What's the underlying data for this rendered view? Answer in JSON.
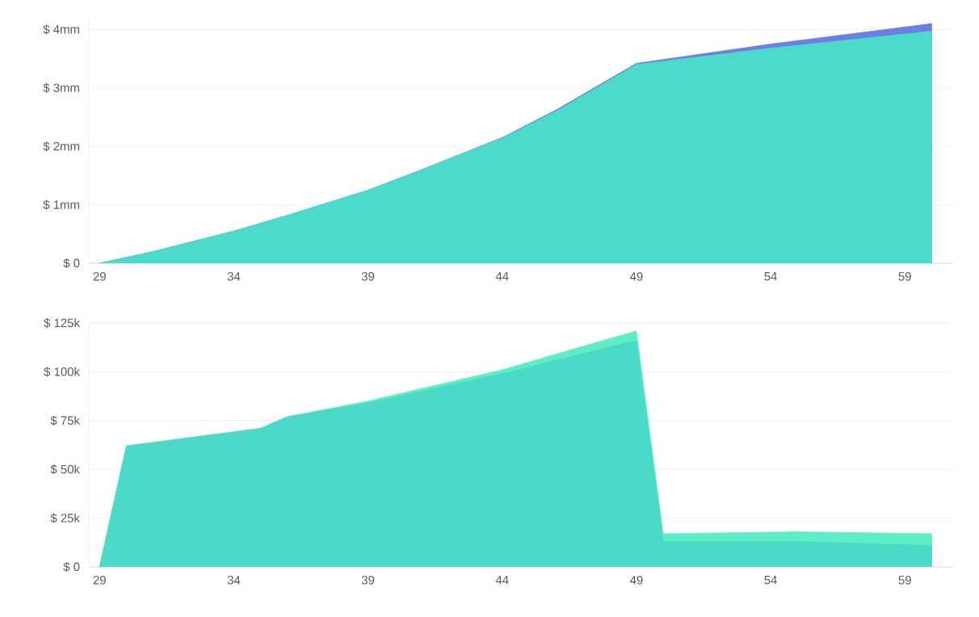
{
  "chart_data": [
    {
      "type": "area",
      "xlim": [
        28.6,
        60.8
      ],
      "ylim": [
        0,
        4.2
      ],
      "xticks": [
        29,
        34,
        39,
        44,
        49,
        54,
        59
      ],
      "yticks": [
        {
          "value": 0,
          "label": "$ 0"
        },
        {
          "value": 1,
          "label": "$ 1mm"
        },
        {
          "value": 2,
          "label": "$ 2mm"
        },
        {
          "value": 3,
          "label": "$ 3mm"
        },
        {
          "value": 4,
          "label": "$ 4mm"
        }
      ],
      "grid": "y",
      "x": [
        29,
        31,
        34,
        36,
        39,
        41,
        44,
        46,
        49,
        54,
        60
      ],
      "series": [
        {
          "color": "#6b7fe6",
          "values": [
            0,
            0.2,
            0.55,
            0.82,
            1.25,
            1.6,
            2.15,
            2.62,
            3.42,
            3.75,
            4.1
          ]
        },
        {
          "color": "#4ddbc9",
          "values": [
            0,
            0.2,
            0.55,
            0.82,
            1.25,
            1.6,
            2.14,
            2.6,
            3.4,
            3.68,
            3.97
          ]
        }
      ]
    },
    {
      "type": "area",
      "xlim": [
        28.6,
        60.8
      ],
      "ylim": [
        0,
        125
      ],
      "xticks": [
        29,
        34,
        39,
        44,
        49,
        54,
        59
      ],
      "yticks": [
        {
          "value": 0,
          "label": "$ 0"
        },
        {
          "value": 25,
          "label": "$ 25k"
        },
        {
          "value": 50,
          "label": "$ 50k"
        },
        {
          "value": 75,
          "label": "$ 75k"
        },
        {
          "value": 100,
          "label": "$ 100k"
        },
        {
          "value": 125,
          "label": "$ 125k"
        }
      ],
      "grid": "y",
      "x": [
        29,
        30,
        35,
        36,
        39,
        44,
        49,
        50,
        55,
        60
      ],
      "series": [
        {
          "color": "#5eedc4",
          "values": [
            0,
            62,
            71,
            77,
            85,
            101,
            121,
            17,
            18,
            17
          ]
        },
        {
          "color": "#4cd9c8",
          "values": [
            0,
            62,
            71,
            77,
            84,
            99,
            116,
            13,
            13,
            11
          ]
        }
      ]
    }
  ]
}
